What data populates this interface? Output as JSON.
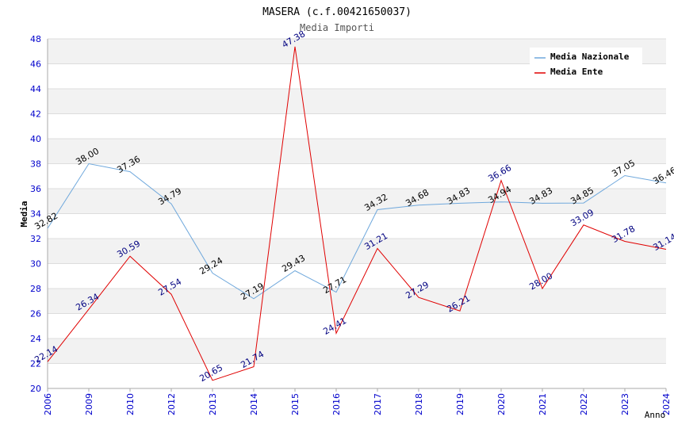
{
  "chart_data": {
    "type": "line",
    "title": "MASERA (c.f.00421650037)",
    "subtitle": "Media Importi",
    "xlabel": "Anno",
    "ylabel": "Media",
    "ylim": [
      20,
      48
    ],
    "ytick_step": 2,
    "categories": [
      "2006",
      "2009",
      "2010",
      "2012",
      "2013",
      "2014",
      "2015",
      "2016",
      "2017",
      "2018",
      "2019",
      "2020",
      "2021",
      "2022",
      "2023",
      "2024"
    ],
    "grid": true,
    "legend_position": "top-right",
    "series": [
      {
        "name": "Media Nazionale",
        "color": "#6fa8dc",
        "label_color": "#000000",
        "values": [
          32.82,
          38.0,
          37.36,
          34.79,
          29.24,
          27.19,
          29.43,
          27.71,
          34.32,
          34.68,
          34.83,
          34.94,
          34.83,
          34.85,
          37.05,
          36.46
        ],
        "labels": [
          "32.82",
          "38.00",
          "37.36",
          "34.79",
          "29.24",
          "27.19",
          "29.43",
          "27.71",
          "34.32",
          "34.68",
          "34.83",
          "34.94",
          "34.83",
          "34.85",
          "37.05",
          "36.46"
        ]
      },
      {
        "name": "Media Ente",
        "color": "#e00000",
        "label_color": "#000080",
        "values": [
          22.14,
          26.34,
          30.59,
          27.54,
          20.65,
          21.74,
          47.38,
          24.41,
          31.21,
          27.29,
          26.21,
          36.66,
          28.0,
          33.09,
          31.78,
          31.14
        ],
        "labels": [
          "22.14",
          "26.34",
          "30.59",
          "27.54",
          "20.65",
          "21.74",
          "47.38",
          "24.41",
          "31.21",
          "27.29",
          "26.21",
          "36.66",
          "28.00",
          "33.09",
          "31.78",
          "31.14"
        ]
      }
    ]
  }
}
